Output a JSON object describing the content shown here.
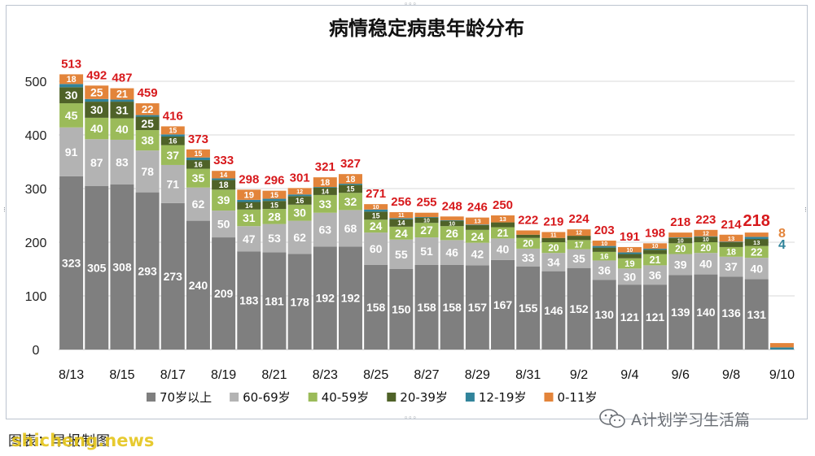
{
  "chart_data": {
    "type": "bar",
    "stacked": true,
    "title": "病情稳定病患年龄分布",
    "categories": [
      "8/13",
      "8/14",
      "8/15",
      "8/16",
      "8/17",
      "8/18",
      "8/19",
      "8/20",
      "8/21",
      "8/22",
      "8/23",
      "8/24",
      "8/25",
      "8/26",
      "8/27",
      "8/28",
      "8/29",
      "8/30",
      "8/31",
      "9/1",
      "9/2",
      "9/3",
      "9/4",
      "9/5",
      "9/6",
      "9/7",
      "9/8",
      "9/9",
      "9/10"
    ],
    "x_tick_labels": [
      "8/13",
      "8/15",
      "8/17",
      "8/19",
      "8/21",
      "8/23",
      "8/25",
      "8/27",
      "8/29",
      "8/31",
      "9/2",
      "9/4",
      "9/6",
      "9/8",
      "9/10"
    ],
    "ylim": [
      0,
      550
    ],
    "y_ticks": [
      0,
      100,
      200,
      300,
      400,
      500
    ],
    "grid": true,
    "legend_position": "bottom",
    "series": [
      {
        "name": "70岁以上",
        "color": "#7f7f7f",
        "label_color": "#ffffff",
        "values": [
          323,
          305,
          308,
          293,
          273,
          240,
          209,
          183,
          181,
          178,
          192,
          192,
          158,
          150,
          158,
          158,
          157,
          167,
          155,
          146,
          152,
          130,
          121,
          121,
          139,
          140,
          136,
          131,
          null
        ]
      },
      {
        "name": "60-69岁",
        "color": "#b3b3b3",
        "label_color": "#ffffff",
        "values": [
          91,
          87,
          83,
          78,
          71,
          62,
          50,
          47,
          53,
          62,
          63,
          68,
          60,
          55,
          51,
          46,
          42,
          40,
          33,
          34,
          35,
          36,
          30,
          36,
          39,
          40,
          37,
          40,
          null
        ]
      },
      {
        "name": "40-59岁",
        "color": "#9bbb59",
        "label_color": "#ffffff",
        "values": [
          45,
          40,
          40,
          38,
          37,
          35,
          39,
          31,
          28,
          30,
          33,
          32,
          24,
          24,
          27,
          26,
          24,
          21,
          20,
          20,
          17,
          16,
          19,
          21,
          20,
          20,
          18,
          22,
          null
        ]
      },
      {
        "name": "20-39岁",
        "color": "#4f6228",
        "label_color": "#ffffff",
        "values": [
          30,
          30,
          31,
          25,
          16,
          16,
          18,
          14,
          15,
          16,
          14,
          15,
          15,
          14,
          10,
          10,
          9,
          9,
          6,
          8,
          8,
          8,
          8,
          8,
          10,
          10,
          9,
          13,
          null
        ]
      },
      {
        "name": "12-19岁",
        "color": "#31849b",
        "label_color": "#ffffff",
        "values": [
          6,
          5,
          4,
          3,
          4,
          5,
          3,
          4,
          4,
          3,
          1,
          2,
          4,
          2,
          1,
          1,
          1,
          0,
          0,
          0,
          0,
          3,
          3,
          2,
          1,
          1,
          1,
          4,
          4
        ]
      },
      {
        "name": "0-11岁",
        "color": "#e3843a",
        "label_color": "#ffffff",
        "values": [
          18,
          25,
          21,
          22,
          15,
          15,
          14,
          19,
          15,
          12,
          18,
          18,
          10,
          11,
          8,
          7,
          13,
          13,
          8,
          11,
          12,
          10,
          10,
          10,
          9,
          12,
          13,
          8,
          8
        ]
      }
    ],
    "totals": [
      513,
      492,
      487,
      459,
      416,
      373,
      333,
      298,
      296,
      301,
      321,
      327,
      271,
      256,
      255,
      248,
      246,
      250,
      222,
      219,
      224,
      203,
      191,
      198,
      218,
      223,
      214,
      218,
      null
    ],
    "total_color": "#d7191c",
    "last_point_labels": {
      "0-11岁": "8",
      "12-19岁": "4"
    }
  },
  "footer": {
    "caption": "图表：早报制图",
    "watermark": "shicheng.news",
    "wechat_account": "A计划学习生活篇"
  },
  "icons": {
    "wechat": "wechat-icon"
  }
}
